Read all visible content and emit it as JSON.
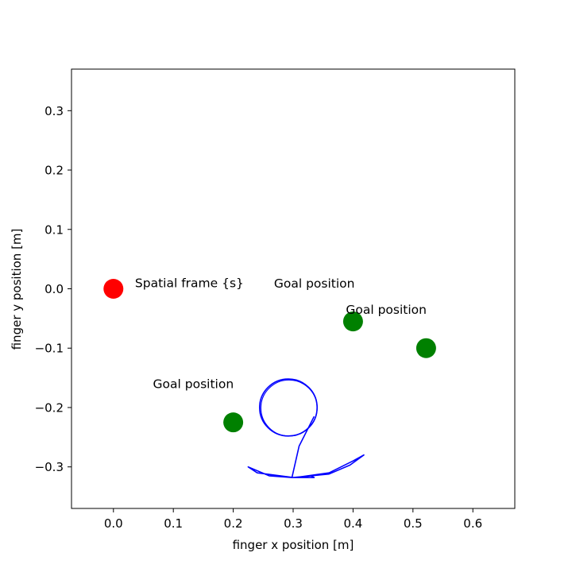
{
  "chart_data": {
    "type": "scatter",
    "xlabel": "finger x position [m]",
    "ylabel": "finger y position [m]",
    "xlim": [
      -0.07,
      0.67
    ],
    "ylim": [
      -0.37,
      0.37
    ],
    "xticks": [
      0.0,
      0.1,
      0.2,
      0.3,
      0.4,
      0.5,
      0.6
    ],
    "yticks": [
      -0.3,
      -0.2,
      -0.1,
      0.0,
      0.1,
      0.2,
      0.3
    ],
    "xtick_labels": [
      "0.0",
      "0.1",
      "0.2",
      "0.3",
      "0.4",
      "0.5",
      "0.6"
    ],
    "ytick_labels": [
      "−0.3",
      "−0.2",
      "−0.1",
      "0.0",
      "0.1",
      "0.2",
      "0.3"
    ],
    "points": [
      {
        "x": 0.0,
        "y": 0.0,
        "color": "#ff0000"
      },
      {
        "x": 0.2,
        "y": -0.225,
        "color": "#008000"
      },
      {
        "x": 0.4,
        "y": -0.055,
        "color": "#008000"
      },
      {
        "x": 0.522,
        "y": -0.1,
        "color": "#008000"
      }
    ],
    "annotations": [
      {
        "text": "Spatial frame {s}",
        "x": 0.036,
        "y": 0.003
      },
      {
        "text": "Goal position",
        "x": 0.268,
        "y": 0.002
      },
      {
        "text": "Goal position",
        "x": 0.388,
        "y": -0.042
      },
      {
        "text": "Goal position",
        "x": 0.066,
        "y": -0.167
      }
    ],
    "trajectory": {
      "color": "#0000ff",
      "circle": {
        "cx": 0.292,
        "cy": -0.2,
        "r": 0.048
      },
      "path": [
        [
          0.335,
          -0.215
        ],
        [
          0.31,
          -0.265
        ],
        [
          0.298,
          -0.318
        ],
        [
          0.26,
          -0.315
        ],
        [
          0.225,
          -0.3
        ],
        [
          0.24,
          -0.31
        ],
        [
          0.3,
          -0.318
        ],
        [
          0.36,
          -0.312
        ],
        [
          0.395,
          -0.297
        ],
        [
          0.418,
          -0.28
        ],
        [
          0.4,
          -0.29
        ],
        [
          0.36,
          -0.31
        ],
        [
          0.303,
          -0.318
        ],
        [
          0.33,
          -0.315
        ],
        [
          0.335,
          -0.318
        ],
        [
          0.3,
          -0.318
        ]
      ]
    }
  }
}
